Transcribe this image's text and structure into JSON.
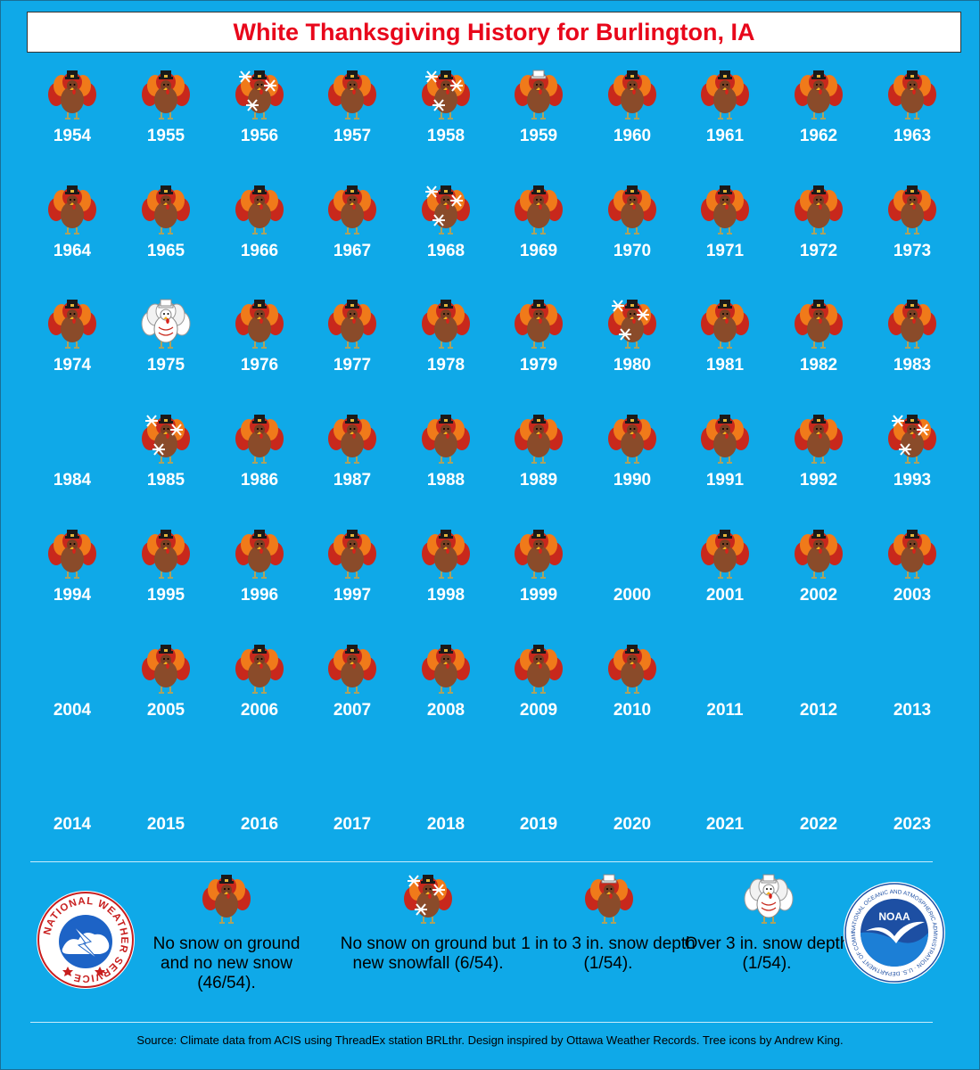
{
  "title": "White Thanksgiving History for Burlington, IA",
  "years": [
    {
      "year": "1954",
      "category": "none"
    },
    {
      "year": "1955",
      "category": "none"
    },
    {
      "year": "1956",
      "category": "snowfall"
    },
    {
      "year": "1957",
      "category": "none"
    },
    {
      "year": "1958",
      "category": "snowfall"
    },
    {
      "year": "1959",
      "category": "depth-1to3"
    },
    {
      "year": "1960",
      "category": "none"
    },
    {
      "year": "1961",
      "category": "none"
    },
    {
      "year": "1962",
      "category": "none"
    },
    {
      "year": "1963",
      "category": "none"
    },
    {
      "year": "1964",
      "category": "none"
    },
    {
      "year": "1965",
      "category": "none"
    },
    {
      "year": "1966",
      "category": "none"
    },
    {
      "year": "1967",
      "category": "none"
    },
    {
      "year": "1968",
      "category": "snowfall"
    },
    {
      "year": "1969",
      "category": "none"
    },
    {
      "year": "1970",
      "category": "none"
    },
    {
      "year": "1971",
      "category": "none"
    },
    {
      "year": "1972",
      "category": "none"
    },
    {
      "year": "1973",
      "category": "none"
    },
    {
      "year": "1974",
      "category": "none"
    },
    {
      "year": "1975",
      "category": "depth-over3"
    },
    {
      "year": "1976",
      "category": "none"
    },
    {
      "year": "1977",
      "category": "none"
    },
    {
      "year": "1978",
      "category": "none"
    },
    {
      "year": "1979",
      "category": "none"
    },
    {
      "year": "1980",
      "category": "snowfall"
    },
    {
      "year": "1981",
      "category": "none"
    },
    {
      "year": "1982",
      "category": "none"
    },
    {
      "year": "1983",
      "category": "none"
    },
    {
      "year": "1984",
      "category": "blank"
    },
    {
      "year": "1985",
      "category": "snowfall"
    },
    {
      "year": "1986",
      "category": "none"
    },
    {
      "year": "1987",
      "category": "none"
    },
    {
      "year": "1988",
      "category": "none"
    },
    {
      "year": "1989",
      "category": "none"
    },
    {
      "year": "1990",
      "category": "none"
    },
    {
      "year": "1991",
      "category": "none"
    },
    {
      "year": "1992",
      "category": "none"
    },
    {
      "year": "1993",
      "category": "snowfall"
    },
    {
      "year": "1994",
      "category": "none"
    },
    {
      "year": "1995",
      "category": "none"
    },
    {
      "year": "1996",
      "category": "none"
    },
    {
      "year": "1997",
      "category": "none"
    },
    {
      "year": "1998",
      "category": "none"
    },
    {
      "year": "1999",
      "category": "none"
    },
    {
      "year": "2000",
      "category": "blank"
    },
    {
      "year": "2001",
      "category": "none"
    },
    {
      "year": "2002",
      "category": "none"
    },
    {
      "year": "2003",
      "category": "none"
    },
    {
      "year": "2004",
      "category": "blank"
    },
    {
      "year": "2005",
      "category": "none"
    },
    {
      "year": "2006",
      "category": "none"
    },
    {
      "year": "2007",
      "category": "none"
    },
    {
      "year": "2008",
      "category": "none"
    },
    {
      "year": "2009",
      "category": "none"
    },
    {
      "year": "2010",
      "category": "none"
    },
    {
      "year": "2011",
      "category": "blank"
    },
    {
      "year": "2012",
      "category": "blank"
    },
    {
      "year": "2013",
      "category": "blank"
    },
    {
      "year": "2014",
      "category": "blank"
    },
    {
      "year": "2015",
      "category": "blank"
    },
    {
      "year": "2016",
      "category": "blank"
    },
    {
      "year": "2017",
      "category": "blank"
    },
    {
      "year": "2018",
      "category": "blank"
    },
    {
      "year": "2019",
      "category": "blank"
    },
    {
      "year": "2020",
      "category": "blank"
    },
    {
      "year": "2021",
      "category": "blank"
    },
    {
      "year": "2022",
      "category": "blank"
    },
    {
      "year": "2023",
      "category": "blank"
    }
  ],
  "legend": {
    "none_label": "No snow on ground and no new snow (46/54).",
    "snowfall_label": "No snow on ground but new snowfall (6/54).",
    "depth_1to3_label": "1 in to 3 in. snow depth (1/54).",
    "depth_over3_label": "Over 3 in. snow depth (1/54)."
  },
  "logos": {
    "nws_text": "NATIONAL WEATHER SERVICE",
    "noaa_text": "NOAA",
    "noaa_ring_text": "NATIONAL OCEANIC AND ATMOSPHERIC ADMINISTRATION · U.S. DEPARTMENT OF COMMERCE"
  },
  "source": "Source: Climate data from ACIS using ThreadEx station BRLthr. Design inspired by Ottawa Weather Records. Tree icons by Andrew King.",
  "colors": {
    "background": "#0fa9e8",
    "title_red": "#e8071b",
    "turkey_body": "#8a4b2a",
    "feather_red": "#c8281c",
    "feather_orange": "#f07a1a",
    "snow": "#ffffff"
  }
}
